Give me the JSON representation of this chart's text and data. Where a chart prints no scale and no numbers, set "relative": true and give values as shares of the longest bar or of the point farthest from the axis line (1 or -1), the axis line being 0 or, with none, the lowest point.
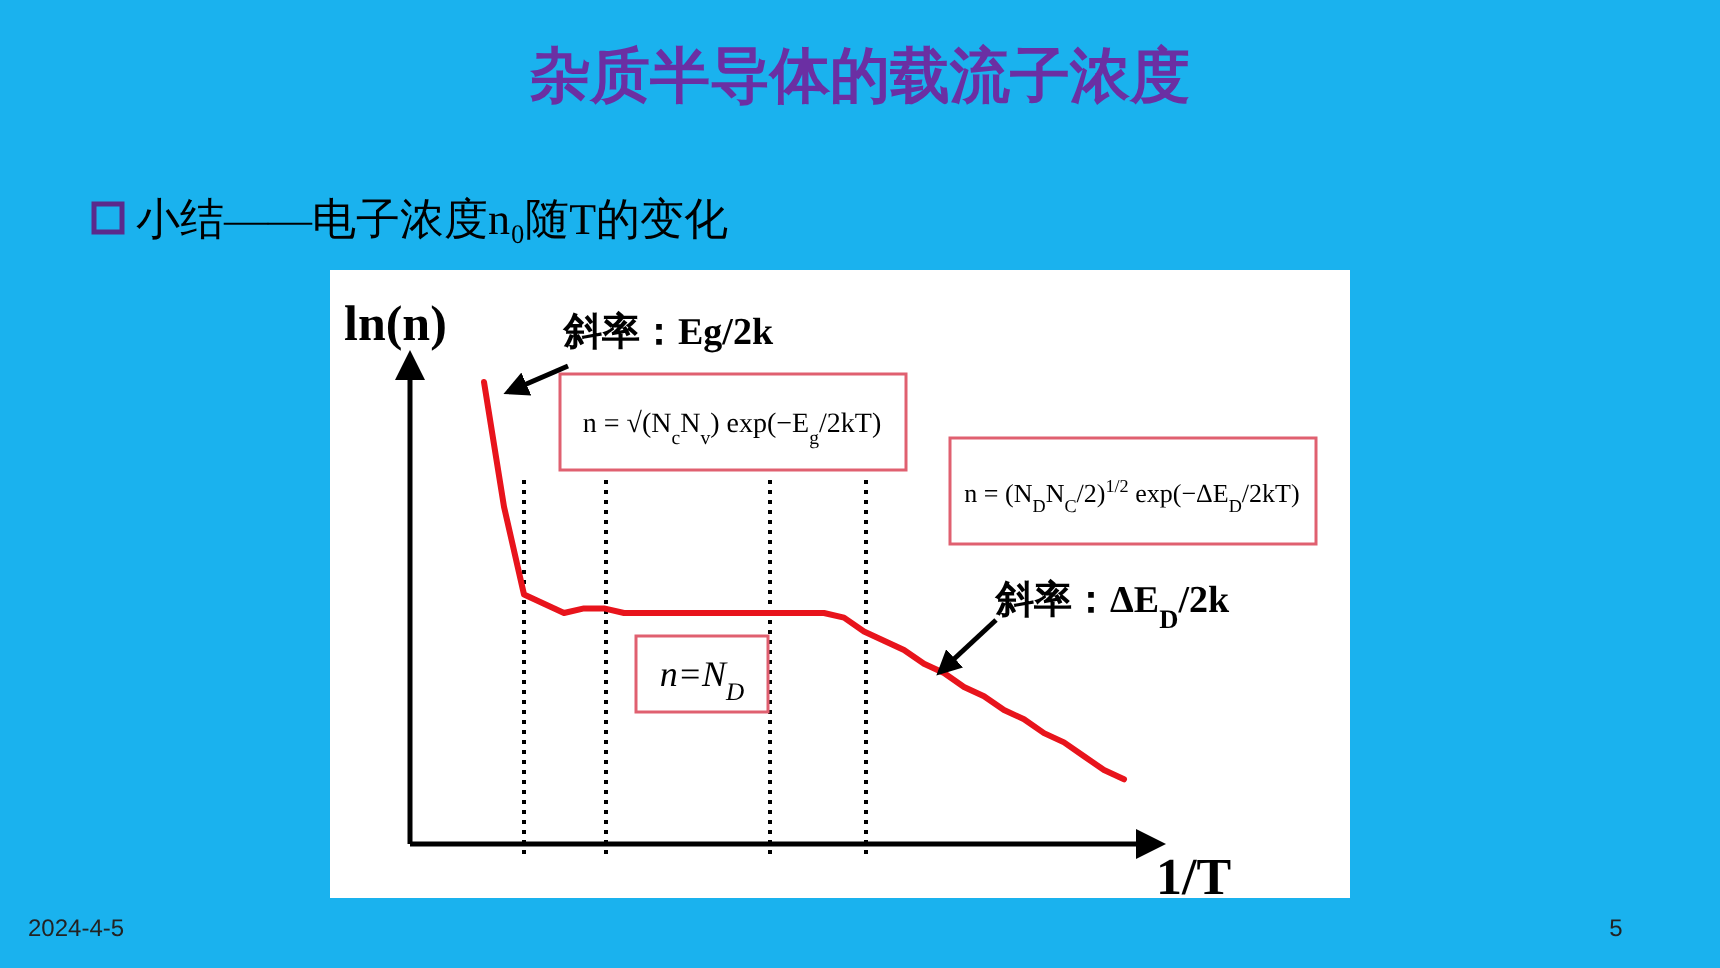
{
  "chart_data": {
    "type": "line",
    "title": "杂质半导体的载流子浓度",
    "subtitle": "小结——电子浓度n₀随T的变化",
    "xlabel": "1/T",
    "ylabel": "ln(n)",
    "relative": true,
    "grid": "x",
    "categories": [
      null,
      null,
      null,
      null,
      null,
      null,
      null,
      null,
      null,
      null,
      null,
      null,
      null,
      null,
      null,
      null,
      null,
      null,
      null,
      null,
      null,
      null,
      null,
      null,
      null,
      null,
      null,
      null,
      null,
      null,
      null,
      null,
      null
    ],
    "color": "#e8141c",
    "values": [
      1.0,
      0.73,
      0.54,
      0.52,
      0.5,
      0.51,
      0.51,
      0.5,
      0.5,
      0.5,
      0.5,
      0.5,
      0.5,
      0.5,
      0.5,
      0.5,
      0.5,
      0.5,
      0.49,
      0.46,
      0.44,
      0.42,
      0.39,
      0.37,
      0.34,
      0.32,
      0.29,
      0.27,
      0.24,
      0.22,
      0.19,
      0.16,
      0.14
    ],
    "annotations": [
      "斜率：Eg/2k",
      "n = √(N$_{c}$N$_{v}$) exp(−E$_{g}$/2kT)",
      "n = (N$_{D}$N$_{C}$/2)$^{1/2}$ exp(−ΔE$_{D}$/2kT)",
      "斜率：ΔE$_{D}$/2k",
      "n=N$_{D}$",
      "2024-4-5",
      "5"
    ]
  }
}
